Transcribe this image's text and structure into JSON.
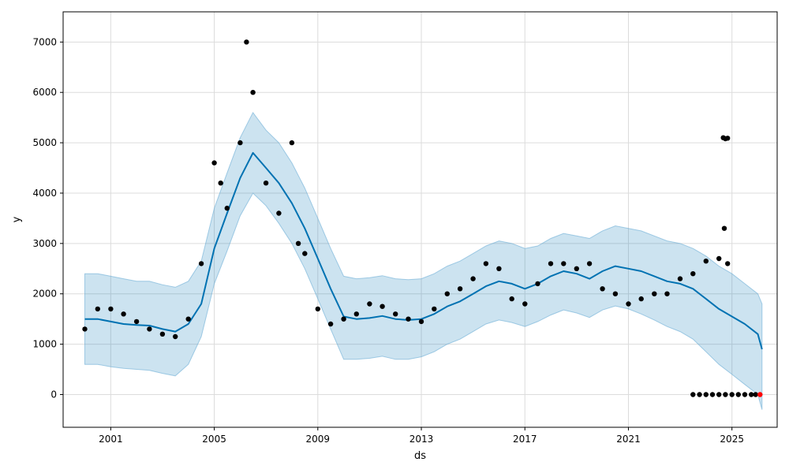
{
  "chart_data": {
    "type": "line",
    "xlabel": "ds",
    "ylabel": "y",
    "grid": true,
    "x_range": [
      "1999-03-01",
      "2026-10-01"
    ],
    "ylim": [
      -650,
      7600
    ],
    "x_ticks": [
      {
        "date": "2001-01-01",
        "label": "2001"
      },
      {
        "date": "2005-01-01",
        "label": "2005"
      },
      {
        "date": "2009-01-01",
        "label": "2009"
      },
      {
        "date": "2013-01-01",
        "label": "2013"
      },
      {
        "date": "2017-01-01",
        "label": "2017"
      },
      {
        "date": "2021-01-01",
        "label": "2021"
      },
      {
        "date": "2025-01-01",
        "label": "2025"
      }
    ],
    "y_ticks": [
      0,
      1000,
      2000,
      3000,
      4000,
      5000,
      6000,
      7000
    ],
    "series": [
      {
        "kind": "forecast",
        "color": "#0072B2",
        "x": [
          "2000-01-01",
          "2000-07-01",
          "2001-01-01",
          "2001-07-01",
          "2002-01-01",
          "2002-07-01",
          "2003-01-01",
          "2003-07-01",
          "2004-01-01",
          "2004-07-01",
          "2005-01-01",
          "2005-07-01",
          "2006-01-01",
          "2006-07-01",
          "2007-01-01",
          "2007-07-01",
          "2008-01-01",
          "2008-07-01",
          "2009-01-01",
          "2009-07-01",
          "2010-01-01",
          "2010-07-01",
          "2011-01-01",
          "2011-07-01",
          "2012-01-01",
          "2012-07-01",
          "2013-01-01",
          "2013-07-01",
          "2014-01-01",
          "2014-07-01",
          "2015-01-01",
          "2015-07-01",
          "2016-01-01",
          "2016-07-01",
          "2017-01-01",
          "2017-07-01",
          "2018-01-01",
          "2018-07-01",
          "2019-01-01",
          "2019-07-01",
          "2020-01-01",
          "2020-07-01",
          "2021-01-01",
          "2021-07-01",
          "2022-01-01",
          "2022-07-01",
          "2023-01-01",
          "2023-07-01",
          "2024-01-01",
          "2024-07-01",
          "2025-01-01",
          "2025-07-01",
          "2026-01-01",
          "2026-03-01"
        ],
        "y": [
          1500,
          1500,
          1450,
          1400,
          1380,
          1370,
          1300,
          1250,
          1400,
          1800,
          2900,
          3600,
          4300,
          4800,
          4500,
          4200,
          3800,
          3300,
          2700,
          2100,
          1550,
          1500,
          1520,
          1560,
          1500,
          1480,
          1500,
          1600,
          1750,
          1850,
          2000,
          2150,
          2250,
          2200,
          2100,
          2200,
          2350,
          2450,
          2400,
          2300,
          2450,
          2550,
          2500,
          2450,
          2350,
          2250,
          2200,
          2100,
          1900,
          1700,
          1550,
          1400,
          1200,
          900
        ],
        "lower": [
          600,
          600,
          550,
          520,
          500,
          480,
          420,
          370,
          600,
          1150,
          2200,
          2850,
          3550,
          4000,
          3750,
          3400,
          3000,
          2500,
          1900,
          1300,
          700,
          700,
          720,
          760,
          700,
          700,
          750,
          850,
          1000,
          1100,
          1250,
          1400,
          1480,
          1430,
          1350,
          1450,
          1580,
          1680,
          1620,
          1530,
          1680,
          1760,
          1700,
          1600,
          1480,
          1350,
          1250,
          1100,
          850,
          600,
          400,
          200,
          0,
          -300
        ],
        "upper": [
          2400,
          2400,
          2350,
          2300,
          2250,
          2250,
          2180,
          2130,
          2250,
          2650,
          3700,
          4400,
          5100,
          5600,
          5250,
          5000,
          4600,
          4100,
          3500,
          2900,
          2350,
          2300,
          2320,
          2360,
          2300,
          2280,
          2300,
          2400,
          2550,
          2650,
          2800,
          2950,
          3050,
          3000,
          2900,
          2950,
          3100,
          3200,
          3150,
          3100,
          3250,
          3350,
          3300,
          3250,
          3150,
          3050,
          3000,
          2900,
          2750,
          2550,
          2400,
          2200,
          2000,
          1800
        ]
      },
      {
        "kind": "observed",
        "color": "#000000",
        "x": [
          "2000-01-01",
          "2000-07-01",
          "2001-01-01",
          "2001-07-01",
          "2002-01-01",
          "2002-07-01",
          "2003-01-01",
          "2003-07-01",
          "2004-01-01",
          "2004-07-01",
          "2005-01-01",
          "2005-04-01",
          "2005-07-01",
          "2006-01-01",
          "2006-04-01",
          "2006-07-01",
          "2007-01-01",
          "2007-07-01",
          "2008-01-01",
          "2008-04-01",
          "2008-07-01",
          "2009-01-01",
          "2009-07-01",
          "2010-01-01",
          "2010-07-01",
          "2011-01-01",
          "2011-07-01",
          "2012-01-01",
          "2012-07-01",
          "2013-01-01",
          "2013-07-01",
          "2014-01-01",
          "2014-07-01",
          "2015-01-01",
          "2015-07-01",
          "2016-01-01",
          "2016-07-01",
          "2017-01-01",
          "2017-07-01",
          "2018-01-01",
          "2018-07-01",
          "2019-01-01",
          "2019-07-01",
          "2020-01-01",
          "2020-07-01",
          "2021-01-01",
          "2021-07-01",
          "2022-01-01",
          "2022-07-01",
          "2023-01-01",
          "2023-07-01",
          "2024-01-01",
          "2024-07-01",
          "2024-11-01"
        ],
        "y": [
          1300,
          1700,
          1700,
          1600,
          1450,
          1300,
          1200,
          1150,
          1500,
          2600,
          4600,
          4200,
          3700,
          5000,
          7000,
          6000,
          4200,
          3600,
          5000,
          3000,
          2800,
          1700,
          1400,
          1500,
          1600,
          1800,
          1750,
          1600,
          1500,
          1450,
          1700,
          2000,
          2100,
          2300,
          2600,
          2500,
          1900,
          1800,
          2200,
          2600,
          2600,
          2500,
          2600,
          2100,
          2000,
          1800,
          1900,
          2000,
          2000,
          2300,
          2400,
          2650,
          2700,
          2600
        ]
      },
      {
        "kind": "observed_outliers",
        "color": "#000000",
        "x": [
          "2024-09-01",
          "2024-10-01",
          "2024-11-01",
          "2024-09-15"
        ],
        "y": [
          5100,
          5080,
          5090,
          3300
        ]
      },
      {
        "kind": "observed_zero",
        "color": "#000000",
        "x": [
          "2023-07-01",
          "2023-10-01",
          "2024-01-01",
          "2024-04-01",
          "2024-07-01",
          "2024-10-01",
          "2025-01-01",
          "2025-04-01",
          "2025-07-01",
          "2025-10-01",
          "2025-12-01"
        ],
        "y": [
          0,
          0,
          0,
          0,
          0,
          0,
          0,
          0,
          0,
          0,
          0
        ]
      },
      {
        "kind": "last_point",
        "color": "#FF0000",
        "x": [
          "2026-02-01"
        ],
        "y": [
          0
        ]
      }
    ]
  }
}
